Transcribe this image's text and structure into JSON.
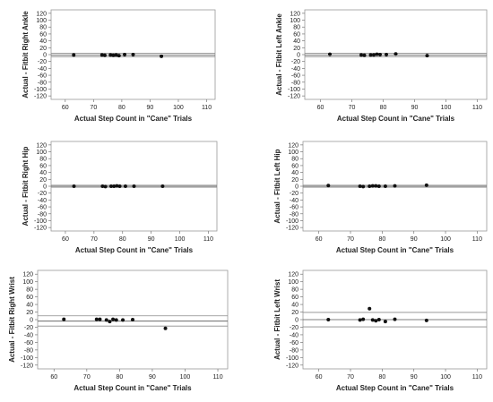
{
  "chart_data": [
    {
      "type": "scatter",
      "ylabel": "Actual - Fitbit Right Ankle",
      "xlabel": "Actual Step Count in \"Cane\" Trials",
      "xlim": [
        55,
        113
      ],
      "ylim": [
        -130,
        130
      ],
      "xticks": [
        "60",
        "70",
        "80",
        "90",
        "100",
        "110"
      ],
      "yticks": [
        "120",
        "100",
        "80",
        "60",
        "40",
        "20",
        "0",
        "-20",
        "-40",
        "-60",
        "-80",
        "-100",
        "-120"
      ],
      "mean_line": -1,
      "limits": [
        -6,
        4
      ],
      "x": [
        63,
        73,
        74,
        76,
        77,
        78,
        79,
        81,
        84,
        94
      ],
      "y": [
        -1,
        -1,
        -2,
        -1,
        -2,
        -1,
        -3,
        0,
        0,
        -5
      ]
    },
    {
      "type": "scatter",
      "ylabel": "Actual - Fitbit Left Ankle",
      "xlabel": "Actual Step Count in \"Cane\" Trials",
      "xlim": [
        55,
        113
      ],
      "ylim": [
        -130,
        130
      ],
      "xticks": [
        "60",
        "70",
        "80",
        "90",
        "100",
        "110"
      ],
      "yticks": [
        "120",
        "100",
        "80",
        "60",
        "40",
        "20",
        "0",
        "-20",
        "-40",
        "-60",
        "-80",
        "-100",
        "-120"
      ],
      "mean_line": -1,
      "limits": [
        -6,
        4
      ],
      "x": [
        63,
        73,
        74,
        76,
        77,
        78,
        79,
        81,
        84,
        94
      ],
      "y": [
        1,
        -1,
        -2,
        -1,
        -1,
        1,
        0,
        0,
        2,
        -3
      ]
    },
    {
      "type": "scatter",
      "ylabel": "Actual - Fitbit Right Hip",
      "xlabel": "Actual Step Count in \"Cane\" Trials",
      "xlim": [
        55,
        113
      ],
      "ylim": [
        -130,
        130
      ],
      "xticks": [
        "60",
        "70",
        "80",
        "90",
        "100",
        "110"
      ],
      "yticks": [
        "120",
        "100",
        "80",
        "60",
        "40",
        "20",
        "0",
        "-20",
        "-40",
        "-60",
        "-80",
        "-100",
        "-120"
      ],
      "mean_line": 0,
      "limits": [
        -3,
        3
      ],
      "x": [
        63,
        73,
        74,
        76,
        77,
        78,
        79,
        81,
        84,
        94
      ],
      "y": [
        0,
        0,
        -1,
        0,
        0,
        1,
        0,
        0,
        0,
        0
      ]
    },
    {
      "type": "scatter",
      "ylabel": "Actual - Fitbit Left Hip",
      "xlabel": "Actual Step Count in \"Cane\" Trials",
      "xlim": [
        55,
        113
      ],
      "ylim": [
        -130,
        130
      ],
      "xticks": [
        "60",
        "70",
        "80",
        "90",
        "100",
        "110"
      ],
      "yticks": [
        "120",
        "100",
        "80",
        "60",
        "40",
        "20",
        "0",
        "-20",
        "-40",
        "-60",
        "-80",
        "-100",
        "-120"
      ],
      "mean_line": 0,
      "limits": [
        -3,
        3
      ],
      "x": [
        63,
        73,
        74,
        76,
        77,
        78,
        79,
        81,
        84,
        94
      ],
      "y": [
        2,
        0,
        -1,
        0,
        1,
        1,
        0,
        0,
        1,
        3
      ]
    },
    {
      "type": "scatter",
      "ylabel": "Actual - Fitbit Right Wrist",
      "xlabel": "Actual Step Count in \"Cane\" Trials",
      "xlim": [
        55,
        113
      ],
      "ylim": [
        -130,
        130
      ],
      "xticks": [
        "60",
        "70",
        "80",
        "90",
        "100",
        "110"
      ],
      "yticks": [
        "120",
        "100",
        "80",
        "60",
        "40",
        "20",
        "0",
        "-20",
        "-40",
        "-60",
        "-80",
        "-100",
        "-120"
      ],
      "mean_line": -4,
      "limits": [
        -17,
        10
      ],
      "x": [
        63,
        73,
        74,
        76,
        77,
        78,
        79,
        81,
        84,
        94
      ],
      "y": [
        1,
        1,
        1,
        -1,
        -5,
        1,
        -1,
        -1,
        0,
        -23
      ]
    },
    {
      "type": "scatter",
      "ylabel": "Actual - Fitbit Left Wrist",
      "xlabel": "Actual Step Count in \"Cane\" Trials",
      "xlim": [
        55,
        113
      ],
      "ylim": [
        -130,
        130
      ],
      "xticks": [
        "60",
        "70",
        "80",
        "90",
        "100",
        "110"
      ],
      "yticks": [
        "120",
        "100",
        "80",
        "60",
        "40",
        "20",
        "0",
        "-20",
        "-40",
        "-60",
        "-80",
        "-100",
        "-120"
      ],
      "mean_line": 0,
      "limits": [
        -19,
        19
      ],
      "x": [
        63,
        73,
        74,
        76,
        77,
        78,
        79,
        81,
        84,
        94
      ],
      "y": [
        0,
        -1,
        1,
        29,
        -1,
        -3,
        0,
        -5,
        1,
        -2
      ]
    }
  ]
}
